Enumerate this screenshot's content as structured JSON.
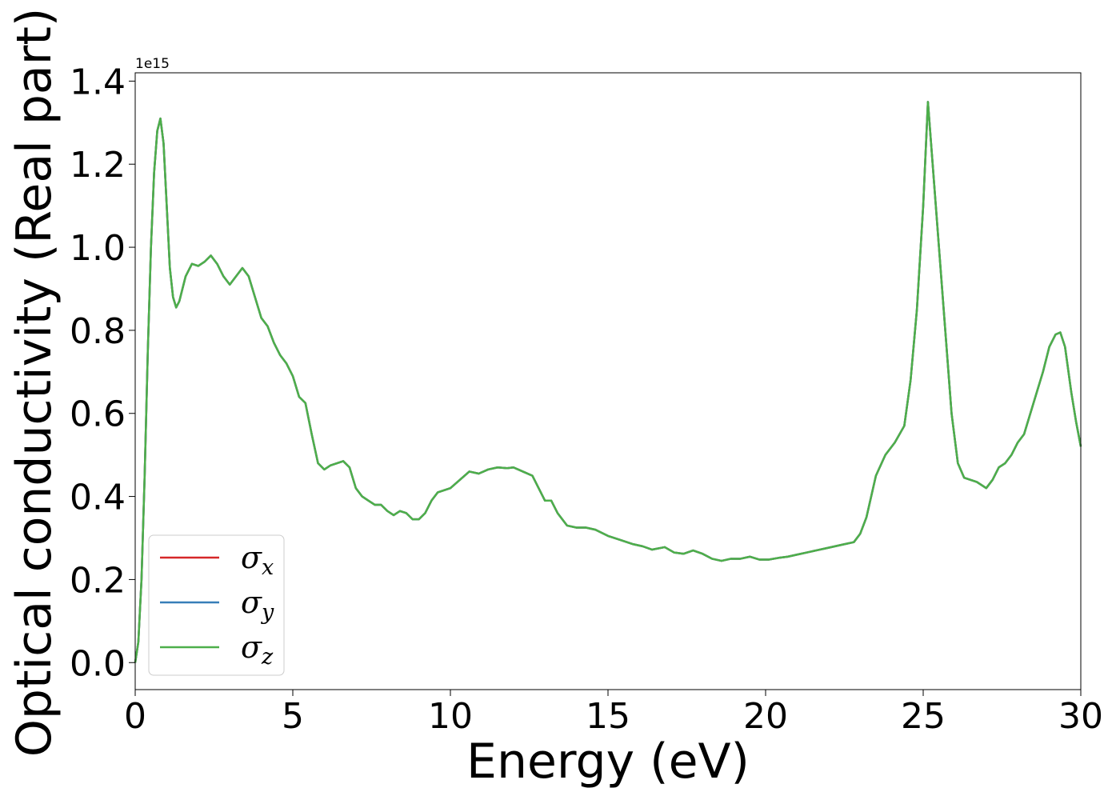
{
  "chart_data": {
    "type": "line",
    "xlabel": "Energy (eV)",
    "ylabel": "Optical conductivity (Real part)",
    "y_offset_text": "1e15",
    "xlim": [
      0,
      30
    ],
    "ylim": [
      -0.065,
      1.42
    ],
    "x_ticks": [
      0,
      5,
      10,
      15,
      20,
      25,
      30
    ],
    "x_tick_labels": [
      "0",
      "5",
      "10",
      "15",
      "20",
      "25",
      "30"
    ],
    "y_ticks": [
      0.0,
      0.2,
      0.4,
      0.6,
      0.8,
      1.0,
      1.2,
      1.4
    ],
    "y_tick_labels": [
      "0.0",
      "0.2",
      "0.4",
      "0.6",
      "0.8",
      "1.0",
      "1.2",
      "1.4"
    ],
    "y_scale_factor": 1000000000000000.0,
    "grid": false,
    "legend_position": "lower-left",
    "x": [
      0,
      0.1,
      0.2,
      0.3,
      0.4,
      0.5,
      0.6,
      0.7,
      0.8,
      0.9,
      1.0,
      1.1,
      1.2,
      1.3,
      1.4,
      1.5,
      1.6,
      1.8,
      2.0,
      2.2,
      2.4,
      2.6,
      2.8,
      3.0,
      3.2,
      3.4,
      3.6,
      3.8,
      4.0,
      4.2,
      4.4,
      4.6,
      4.8,
      5.0,
      5.2,
      5.4,
      5.6,
      5.8,
      6.0,
      6.2,
      6.4,
      6.6,
      6.8,
      7.0,
      7.2,
      7.4,
      7.6,
      7.8,
      8.0,
      8.2,
      8.4,
      8.6,
      8.8,
      9.0,
      9.2,
      9.4,
      9.6,
      9.8,
      10.0,
      10.3,
      10.6,
      10.9,
      11.2,
      11.5,
      11.8,
      12.0,
      12.3,
      12.6,
      12.8,
      13.0,
      13.2,
      13.4,
      13.7,
      14.0,
      14.3,
      14.6,
      15.0,
      15.4,
      15.8,
      16.1,
      16.4,
      16.8,
      17.1,
      17.4,
      17.7,
      18.0,
      18.3,
      18.6,
      18.9,
      19.2,
      19.5,
      19.8,
      20.1,
      20.4,
      20.7,
      21.0,
      21.3,
      21.6,
      21.9,
      22.2,
      22.5,
      22.8,
      23.0,
      23.2,
      23.5,
      23.8,
      24.1,
      24.4,
      24.6,
      24.8,
      25.0,
      25.15,
      25.3,
      25.5,
      25.7,
      25.9,
      26.1,
      26.3,
      26.5,
      26.7,
      26.9,
      27.0,
      27.2,
      27.4,
      27.6,
      27.8,
      28.0,
      28.2,
      28.4,
      28.6,
      28.8,
      29.0,
      29.2,
      29.35,
      29.5,
      29.7,
      29.85,
      30.0
    ],
    "series": [
      {
        "name": "σx",
        "color": "#d62728",
        "values": [
          0.0,
          0.05,
          0.2,
          0.45,
          0.75,
          1.0,
          1.18,
          1.28,
          1.31,
          1.25,
          1.1,
          0.95,
          0.88,
          0.855,
          0.87,
          0.9,
          0.93,
          0.96,
          0.955,
          0.965,
          0.98,
          0.96,
          0.93,
          0.91,
          0.93,
          0.95,
          0.93,
          0.88,
          0.83,
          0.81,
          0.77,
          0.74,
          0.72,
          0.69,
          0.64,
          0.625,
          0.55,
          0.48,
          0.465,
          0.475,
          0.48,
          0.485,
          0.47,
          0.42,
          0.4,
          0.39,
          0.38,
          0.38,
          0.365,
          0.355,
          0.365,
          0.36,
          0.345,
          0.345,
          0.36,
          0.39,
          0.41,
          0.415,
          0.42,
          0.44,
          0.46,
          0.455,
          0.465,
          0.47,
          0.468,
          0.47,
          0.46,
          0.45,
          0.42,
          0.39,
          0.39,
          0.36,
          0.33,
          0.325,
          0.325,
          0.32,
          0.305,
          0.295,
          0.285,
          0.28,
          0.272,
          0.278,
          0.265,
          0.262,
          0.27,
          0.262,
          0.25,
          0.245,
          0.25,
          0.25,
          0.255,
          0.248,
          0.248,
          0.252,
          0.255,
          0.26,
          0.265,
          0.27,
          0.275,
          0.28,
          0.285,
          0.29,
          0.31,
          0.35,
          0.45,
          0.5,
          0.53,
          0.57,
          0.68,
          0.85,
          1.1,
          1.35,
          1.2,
          1.0,
          0.8,
          0.6,
          0.48,
          0.445,
          0.44,
          0.435,
          0.425,
          0.42,
          0.44,
          0.47,
          0.48,
          0.5,
          0.53,
          0.55,
          0.6,
          0.65,
          0.7,
          0.76,
          0.79,
          0.795,
          0.76,
          0.65,
          0.58,
          0.52
        ]
      },
      {
        "name": "σy",
        "color": "#377eb8",
        "values": [
          0.0,
          0.05,
          0.2,
          0.45,
          0.75,
          1.0,
          1.18,
          1.28,
          1.31,
          1.25,
          1.1,
          0.95,
          0.88,
          0.855,
          0.87,
          0.9,
          0.93,
          0.96,
          0.955,
          0.965,
          0.98,
          0.96,
          0.93,
          0.91,
          0.93,
          0.95,
          0.93,
          0.88,
          0.83,
          0.81,
          0.77,
          0.74,
          0.72,
          0.69,
          0.64,
          0.625,
          0.55,
          0.48,
          0.465,
          0.475,
          0.48,
          0.485,
          0.47,
          0.42,
          0.4,
          0.39,
          0.38,
          0.38,
          0.365,
          0.355,
          0.365,
          0.36,
          0.345,
          0.345,
          0.36,
          0.39,
          0.41,
          0.415,
          0.42,
          0.44,
          0.46,
          0.455,
          0.465,
          0.47,
          0.468,
          0.47,
          0.46,
          0.45,
          0.42,
          0.39,
          0.39,
          0.36,
          0.33,
          0.325,
          0.325,
          0.32,
          0.305,
          0.295,
          0.285,
          0.28,
          0.272,
          0.278,
          0.265,
          0.262,
          0.27,
          0.262,
          0.25,
          0.245,
          0.25,
          0.25,
          0.255,
          0.248,
          0.248,
          0.252,
          0.255,
          0.26,
          0.265,
          0.27,
          0.275,
          0.28,
          0.285,
          0.29,
          0.31,
          0.35,
          0.45,
          0.5,
          0.53,
          0.57,
          0.68,
          0.85,
          1.1,
          1.35,
          1.2,
          1.0,
          0.8,
          0.6,
          0.48,
          0.445,
          0.44,
          0.435,
          0.425,
          0.42,
          0.44,
          0.47,
          0.48,
          0.5,
          0.53,
          0.55,
          0.6,
          0.65,
          0.7,
          0.76,
          0.79,
          0.795,
          0.76,
          0.65,
          0.58,
          0.52
        ]
      },
      {
        "name": "σz",
        "color": "#4daf4a",
        "values": [
          0.0,
          0.05,
          0.2,
          0.45,
          0.75,
          1.0,
          1.18,
          1.28,
          1.31,
          1.25,
          1.1,
          0.95,
          0.88,
          0.855,
          0.87,
          0.9,
          0.93,
          0.96,
          0.955,
          0.965,
          0.98,
          0.96,
          0.93,
          0.91,
          0.93,
          0.95,
          0.93,
          0.88,
          0.83,
          0.81,
          0.77,
          0.74,
          0.72,
          0.69,
          0.64,
          0.625,
          0.55,
          0.48,
          0.465,
          0.475,
          0.48,
          0.485,
          0.47,
          0.42,
          0.4,
          0.39,
          0.38,
          0.38,
          0.365,
          0.355,
          0.365,
          0.36,
          0.345,
          0.345,
          0.36,
          0.39,
          0.41,
          0.415,
          0.42,
          0.44,
          0.46,
          0.455,
          0.465,
          0.47,
          0.468,
          0.47,
          0.46,
          0.45,
          0.42,
          0.39,
          0.39,
          0.36,
          0.33,
          0.325,
          0.325,
          0.32,
          0.305,
          0.295,
          0.285,
          0.28,
          0.272,
          0.278,
          0.265,
          0.262,
          0.27,
          0.262,
          0.25,
          0.245,
          0.25,
          0.25,
          0.255,
          0.248,
          0.248,
          0.252,
          0.255,
          0.26,
          0.265,
          0.27,
          0.275,
          0.28,
          0.285,
          0.29,
          0.31,
          0.35,
          0.45,
          0.5,
          0.53,
          0.57,
          0.68,
          0.85,
          1.1,
          1.35,
          1.2,
          1.0,
          0.8,
          0.6,
          0.48,
          0.445,
          0.44,
          0.435,
          0.425,
          0.42,
          0.44,
          0.47,
          0.48,
          0.5,
          0.53,
          0.55,
          0.6,
          0.65,
          0.7,
          0.76,
          0.79,
          0.795,
          0.76,
          0.65,
          0.58,
          0.52
        ]
      }
    ]
  },
  "legend": {
    "entries": [
      {
        "base": "σ",
        "sub": "x"
      },
      {
        "base": "σ",
        "sub": "y"
      },
      {
        "base": "σ",
        "sub": "z"
      }
    ]
  }
}
